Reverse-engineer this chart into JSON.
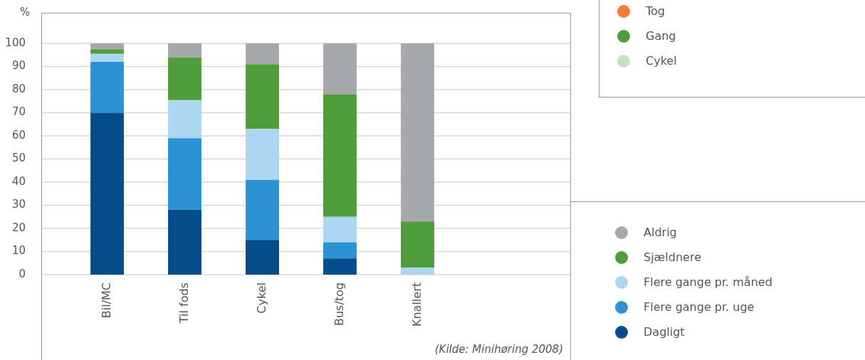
{
  "chart_data": [
    {
      "type": "bar",
      "stacked": true,
      "ylabel": "%",
      "categories": [
        "Bil/MC",
        "Til fods",
        "Cykel",
        "Bus/tog",
        "Knallert"
      ],
      "ylim": [
        0,
        100
      ],
      "yticks": [
        0,
        10,
        20,
        30,
        40,
        50,
        60,
        70,
        80,
        90,
        100
      ],
      "grid": "y",
      "legend": "bottom right",
      "annotations": [
        "(Kilde: Minihøring 2008)"
      ],
      "series": [
        {
          "name": "Dagligt",
          "color": "#034d8a",
          "values": [
            70,
            28,
            15,
            7,
            0
          ]
        },
        {
          "name": "Flere gange pr. uge",
          "color": "#2b93d4",
          "values": [
            22,
            31,
            26,
            7,
            0
          ]
        },
        {
          "name": "Flere gange pr. måned",
          "color": "#aed6f1",
          "values": [
            3.5,
            16.5,
            22,
            11,
            3
          ]
        },
        {
          "name": "Sjældnere",
          "color": "#4f9c3a",
          "values": [
            2,
            18.5,
            28,
            53,
            20
          ]
        },
        {
          "name": "Aldrig",
          "color": "#a7a8ac",
          "values": [
            2.5,
            6,
            9,
            22,
            77
          ]
        }
      ]
    },
    {
      "type": "other",
      "categories": [
        "Tog",
        "Gang",
        "Cykel"
      ],
      "colors": [
        "#f47b3c",
        "#4f9c3a",
        "#c3e3bb"
      ]
    }
  ]
}
